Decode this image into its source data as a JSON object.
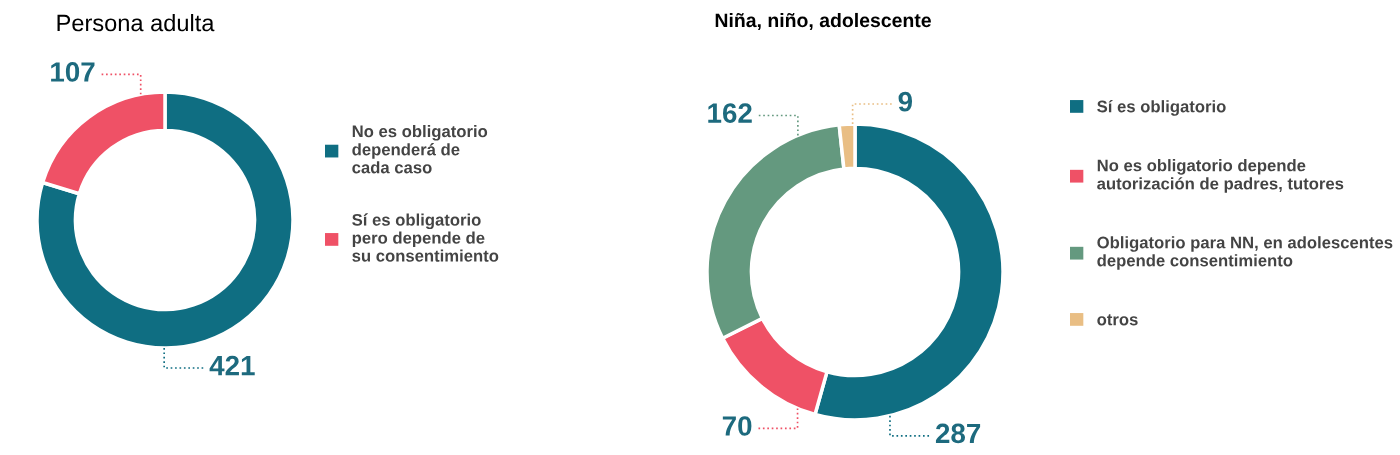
{
  "chart_data": [
    {
      "type": "donut",
      "title": "Persona adulta",
      "categories": [
        "No es obligatorio\ndependerá de\ncada caso",
        "Sí es obligatorio\npero depende de\nsu consentimiento"
      ],
      "values": [
        421,
        107
      ],
      "colors": [
        "#0f6e82",
        "#ef5166"
      ],
      "data_labels": true,
      "legend": "right"
    },
    {
      "type": "donut",
      "title": "Niña, niño, adolescente",
      "categories": [
        "Sí es obligatorio",
        "No es obligatorio depende\nautorización de padres, tutores",
        "Obligatorio para NN, en adolescentes\ndepende consentimiento",
        "otros"
      ],
      "values": [
        287,
        70,
        162,
        9
      ],
      "colors": [
        "#0f6e82",
        "#ef5166",
        "#64997f",
        "#e9be84"
      ],
      "data_labels": true,
      "legend": "right"
    }
  ]
}
